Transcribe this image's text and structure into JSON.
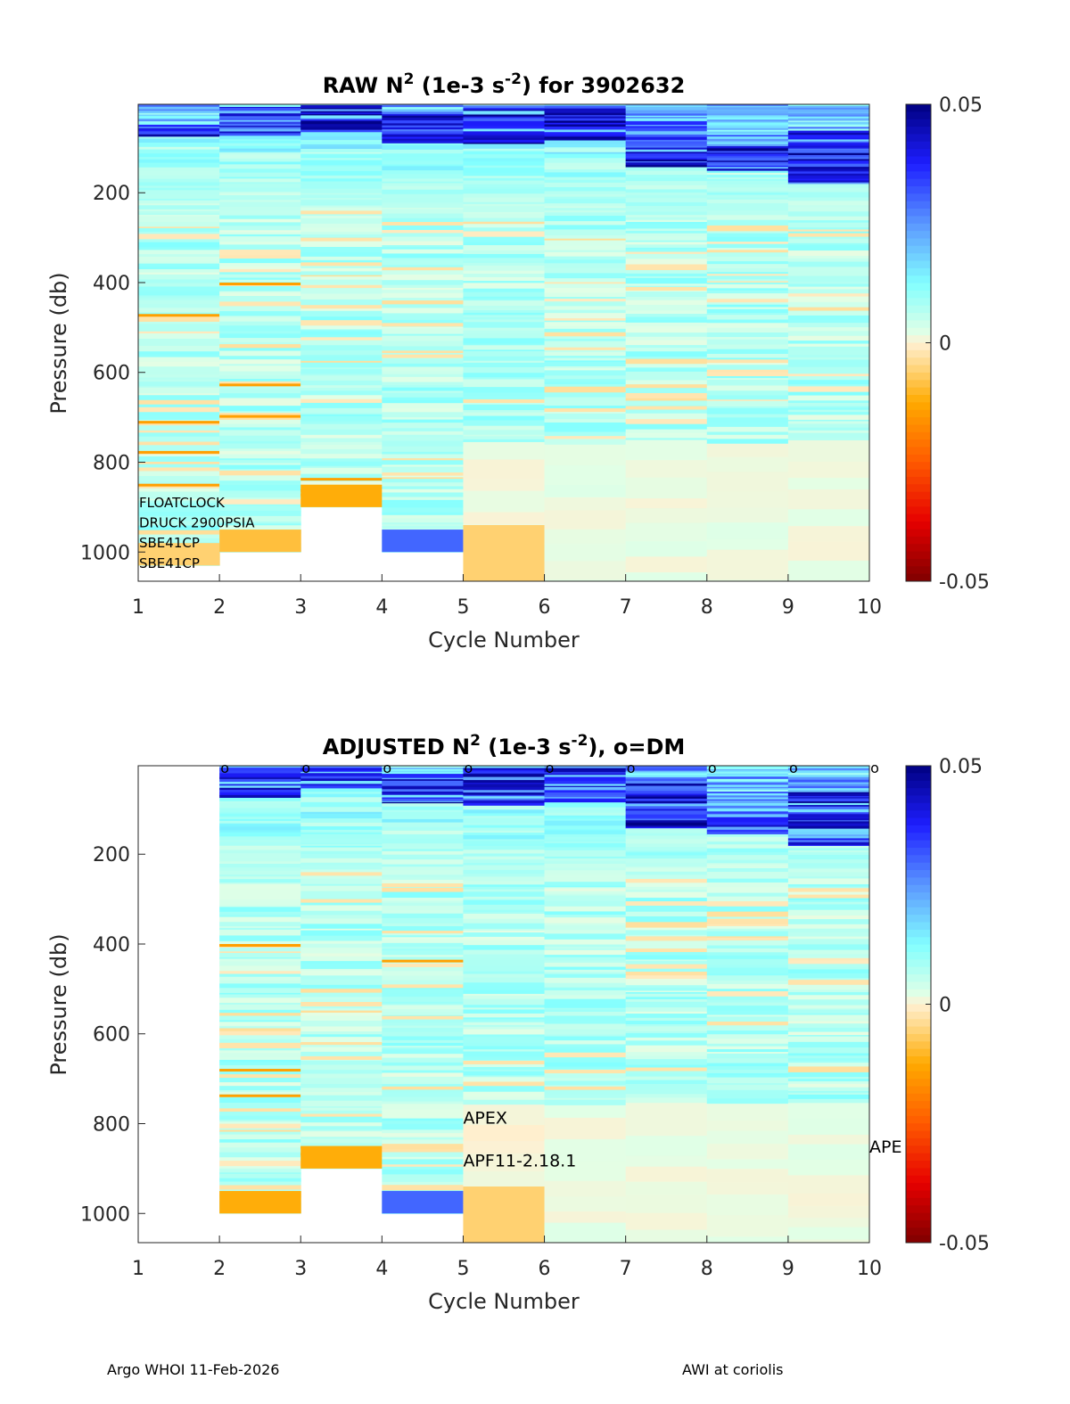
{
  "footer": {
    "left": "Argo WHOI 11-Feb-2026",
    "right": "AWI at coriolis"
  },
  "chart_data": [
    {
      "type": "heatmap",
      "id": "raw",
      "title_main": "RAW N",
      "title_sup1": "2",
      "title_mid": " (1e-3 s",
      "title_sup2": "-2",
      "title_end": ") for 3902632",
      "xlabel": "Cycle Number",
      "ylabel": "Pressure (db)",
      "xlim": [
        1,
        10
      ],
      "ylim": [
        1065,
        3
      ],
      "y_reversed": true,
      "xticks": [
        "1",
        "2",
        "3",
        "4",
        "5",
        "6",
        "7",
        "8",
        "9",
        "10"
      ],
      "yticks": [
        200,
        400,
        600,
        800,
        1000
      ],
      "colorbar": {
        "min": -0.05,
        "max": 0.05,
        "ticks": [
          "0.05",
          "0",
          "-0.05"
        ],
        "colormap": "jet-like diverging (dark red → orange → pale yellow → cyan → blue → navy)"
      },
      "annotations": [
        {
          "text": "FLOATCLOCK",
          "x": 1,
          "y": 900
        },
        {
          "text": "DRUCK 2900PSIA",
          "x": 1,
          "y": 945
        },
        {
          "text": "SBE41CP",
          "x": 1,
          "y": 990
        },
        {
          "text": "SBE41CP",
          "x": 1,
          "y": 1035
        }
      ],
      "dm_markers": [],
      "columns": [
        {
          "cycle": 1,
          "max_p": 1030,
          "bottom_value": -0.002,
          "top_dark": [
            45,
            75
          ],
          "near_zero_lines": [
            475,
            710,
            775,
            850
          ],
          "neg_lines": [
            470,
            708,
            775,
            848
          ]
        },
        {
          "cycle": 2,
          "max_p": 1000,
          "bottom_value": -0.003,
          "top_dark": [
            5,
            70
          ],
          "near_zero_lines": [
            400,
            620,
            690
          ],
          "neg_lines": [
            400,
            625,
            695
          ]
        },
        {
          "cycle": 3,
          "max_p": 900,
          "bottom_value": -0.004,
          "top_dark": [
            5,
            65
          ],
          "near_zero_lines": [
            240,
            300,
            355,
            450
          ],
          "neg_lines": [
            835,
            860,
            870
          ]
        },
        {
          "cycle": 4,
          "max_p": 1000,
          "bottom_value": 0.01,
          "top_dark": [
            20,
            85
          ],
          "near_zero_lines": [
            265,
            490,
            560
          ],
          "neg_lines": []
        },
        {
          "cycle": 5,
          "max_p": 1065,
          "bottom_value": -0.002,
          "top_dark": [
            5,
            90
          ],
          "near_zero_lines": [
            660
          ],
          "neg_lines": []
        },
        {
          "cycle": 6,
          "max_p": 1065,
          "bottom_value": 0.002,
          "top_dark": [
            5,
            80
          ],
          "near_zero_lines": [
            680
          ],
          "neg_lines": []
        },
        {
          "cycle": 7,
          "max_p": 1065,
          "bottom_value": 0.002,
          "top_dark": [
            40,
            140
          ],
          "near_zero_lines": [
            410,
            675
          ],
          "neg_lines": []
        },
        {
          "cycle": 8,
          "max_p": 1065,
          "bottom_value": 0.002,
          "top_dark": [
            90,
            150
          ],
          "near_zero_lines": [],
          "neg_lines": []
        },
        {
          "cycle": 9,
          "max_p": 1065,
          "bottom_value": 0.002,
          "top_dark": [
            60,
            180
          ],
          "near_zero_lines": [
            290
          ],
          "neg_lines": []
        }
      ]
    },
    {
      "type": "heatmap",
      "id": "adjusted",
      "title_main": "ADJUSTED N",
      "title_sup1": "2",
      "title_mid": " (1e-3 s",
      "title_sup2": "-2",
      "title_end": "), o=DM",
      "xlabel": "Cycle Number",
      "ylabel": "Pressure (db)",
      "xlim": [
        1,
        10
      ],
      "ylim": [
        1065,
        3
      ],
      "y_reversed": true,
      "xticks": [
        "1",
        "2",
        "3",
        "4",
        "5",
        "6",
        "7",
        "8",
        "9",
        "10"
      ],
      "yticks": [
        200,
        400,
        600,
        800,
        1000
      ],
      "colorbar": {
        "min": -0.05,
        "max": 0.05,
        "ticks": [
          "0.05",
          "0",
          "-0.05"
        ],
        "colormap": "jet-like diverging (dark red → orange → pale yellow → cyan → blue → navy)"
      },
      "annotations": [
        {
          "text": "APEX",
          "x": 5,
          "y": 800
        },
        {
          "text": "APF11-2.18.1",
          "x": 5,
          "y": 895
        },
        {
          "text": "APE",
          "x": 10,
          "y": 865
        }
      ],
      "dm_markers": [
        2,
        3,
        4,
        5,
        6,
        7,
        8,
        9,
        10
      ],
      "dm_marker_label": "o",
      "columns": [
        {
          "cycle": 1,
          "max_p": 0,
          "bottom_value": 0,
          "top_dark": [
            0,
            0
          ],
          "near_zero_lines": [],
          "neg_lines": []
        },
        {
          "cycle": 2,
          "max_p": 1000,
          "bottom_value": -0.004,
          "top_dark": [
            5,
            70
          ],
          "near_zero_lines": [
            400,
            620,
            690
          ],
          "neg_lines": [
            400,
            678,
            735
          ]
        },
        {
          "cycle": 3,
          "max_p": 900,
          "bottom_value": -0.004,
          "top_dark": [
            5,
            50
          ],
          "near_zero_lines": [
            240,
            300,
            650
          ],
          "neg_lines": [
            850,
            865
          ]
        },
        {
          "cycle": 4,
          "max_p": 1000,
          "bottom_value": 0.01,
          "top_dark": [
            20,
            85
          ],
          "near_zero_lines": [
            265,
            490,
            560
          ],
          "neg_lines": [
            435
          ]
        },
        {
          "cycle": 5,
          "max_p": 1065,
          "bottom_value": -0.002,
          "top_dark": [
            5,
            90
          ],
          "near_zero_lines": [
            660
          ],
          "neg_lines": []
        },
        {
          "cycle": 6,
          "max_p": 1065,
          "bottom_value": 0.002,
          "top_dark": [
            5,
            80
          ],
          "near_zero_lines": [
            680
          ],
          "neg_lines": []
        },
        {
          "cycle": 7,
          "max_p": 1065,
          "bottom_value": 0.002,
          "top_dark": [
            40,
            140
          ],
          "near_zero_lines": [
            410,
            675
          ],
          "neg_lines": []
        },
        {
          "cycle": 8,
          "max_p": 1065,
          "bottom_value": 0.002,
          "top_dark": [
            90,
            150
          ],
          "near_zero_lines": [],
          "neg_lines": []
        },
        {
          "cycle": 9,
          "max_p": 1065,
          "bottom_value": 0.002,
          "top_dark": [
            60,
            180
          ],
          "near_zero_lines": [
            290
          ],
          "neg_lines": []
        }
      ]
    }
  ]
}
